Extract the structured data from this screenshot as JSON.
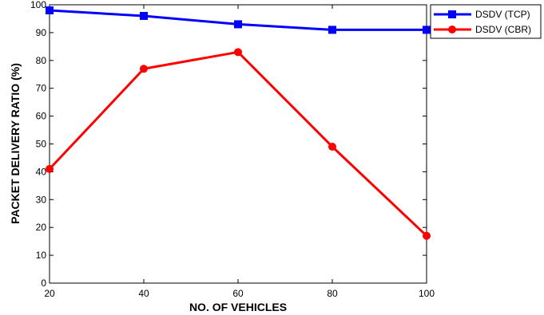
{
  "chart_data": {
    "type": "line",
    "title": "",
    "xlabel": "NO. OF VEHICLES",
    "ylabel": "PACKET DELIVERY RATIO (%)",
    "x": [
      20,
      40,
      60,
      80,
      100
    ],
    "xlim": [
      20,
      100
    ],
    "ylim": [
      0,
      100
    ],
    "xticks": [
      20,
      40,
      60,
      80,
      100
    ],
    "yticks": [
      0,
      10,
      20,
      30,
      40,
      50,
      60,
      70,
      80,
      90,
      100
    ],
    "grid": false,
    "legend_position": "outside-top-right",
    "series": [
      {
        "name": "DSDV (TCP)",
        "values": [
          98,
          96,
          93,
          91,
          91
        ],
        "color": "#0000ff",
        "marker": "square"
      },
      {
        "name": "DSDV (CBR)",
        "values": [
          41,
          77,
          83,
          49,
          17
        ],
        "color": "#ff0000",
        "marker": "circle"
      }
    ]
  }
}
